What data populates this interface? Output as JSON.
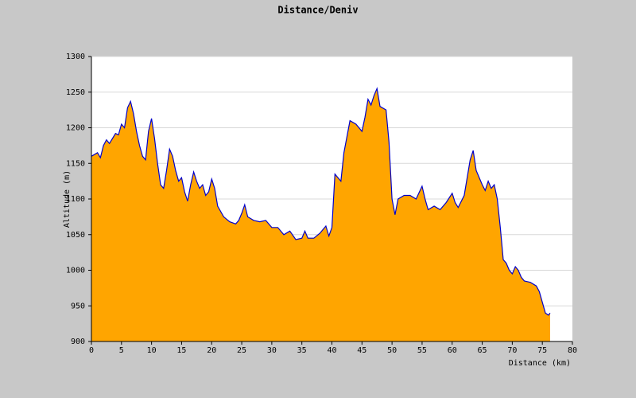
{
  "chart_data": {
    "type": "area",
    "title": "Distance/Deniv",
    "xlabel": "Distance (km)",
    "ylabel": "Altitude (m)",
    "x": [
      0,
      1,
      1.5,
      2,
      2.5,
      3,
      4,
      4.5,
      5,
      5.5,
      6,
      6.5,
      7,
      7.5,
      8,
      8.5,
      9,
      9.5,
      10,
      10.5,
      11,
      11.5,
      12,
      12.5,
      13,
      13.5,
      14,
      14.5,
      15,
      15.5,
      16,
      16.5,
      17,
      17.5,
      18,
      18.5,
      19,
      19.5,
      20,
      20.5,
      21,
      22,
      23,
      24,
      24.5,
      25,
      25.5,
      26,
      27,
      28,
      29,
      30,
      31,
      32,
      33,
      34,
      35,
      35.5,
      36,
      37,
      38,
      39,
      39.5,
      40,
      40.5,
      41,
      41.5,
      42,
      43,
      44,
      45,
      45.5,
      46,
      46.5,
      47,
      47.5,
      48,
      49,
      49.5,
      50,
      50.5,
      51,
      52,
      53,
      54,
      55,
      55.5,
      56,
      57,
      58,
      59,
      60,
      60.5,
      61,
      62,
      63,
      63.5,
      64,
      65,
      65.5,
      66,
      66.5,
      67,
      67.5,
      68,
      68.5,
      69,
      69.5,
      70,
      70.5,
      71,
      71.5,
      72,
      73,
      74,
      74.5,
      75,
      75.5,
      76,
      76.3
    ],
    "series": [
      {
        "name": "Altitude",
        "color": "#0000cc",
        "fill": "#ffa500",
        "values": [
          1160,
          1165,
          1158,
          1175,
          1183,
          1178,
          1192,
          1190,
          1205,
          1200,
          1228,
          1237,
          1220,
          1195,
          1175,
          1160,
          1155,
          1195,
          1213,
          1185,
          1150,
          1120,
          1115,
          1140,
          1170,
          1160,
          1140,
          1125,
          1130,
          1110,
          1097,
          1120,
          1138,
          1125,
          1115,
          1120,
          1105,
          1110,
          1128,
          1115,
          1090,
          1075,
          1068,
          1065,
          1070,
          1080,
          1092,
          1075,
          1070,
          1068,
          1070,
          1060,
          1060,
          1050,
          1055,
          1043,
          1045,
          1055,
          1045,
          1045,
          1052,
          1062,
          1048,
          1060,
          1135,
          1130,
          1125,
          1165,
          1210,
          1205,
          1195,
          1215,
          1240,
          1232,
          1245,
          1255,
          1230,
          1225,
          1180,
          1100,
          1078,
          1100,
          1105,
          1105,
          1100,
          1118,
          1100,
          1085,
          1090,
          1085,
          1095,
          1108,
          1095,
          1088,
          1105,
          1155,
          1168,
          1140,
          1120,
          1112,
          1125,
          1115,
          1120,
          1100,
          1060,
          1015,
          1010,
          1000,
          995,
          1005,
          1000,
          990,
          985,
          983,
          978,
          970,
          955,
          940,
          937,
          940
        ]
      }
    ],
    "xlim": [
      0,
      80
    ],
    "xticks": [
      0,
      5,
      10,
      15,
      20,
      25,
      30,
      35,
      40,
      45,
      50,
      55,
      60,
      65,
      70,
      75,
      80
    ],
    "ylim": [
      900,
      1300
    ],
    "yticks": [
      900,
      950,
      1000,
      1050,
      1100,
      1150,
      1200,
      1250,
      1300
    ],
    "grid": true
  }
}
